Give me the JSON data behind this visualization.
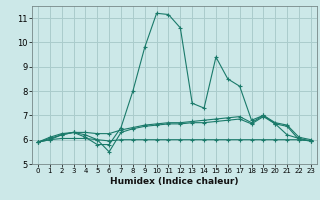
{
  "title": "",
  "xlabel": "Humidex (Indice chaleur)",
  "bg_color": "#cce8e8",
  "grid_color": "#aacccc",
  "line_color": "#1a7a6a",
  "xlim": [
    -0.5,
    23.5
  ],
  "ylim": [
    5.0,
    11.5
  ],
  "xticks": [
    0,
    1,
    2,
    3,
    4,
    5,
    6,
    7,
    8,
    9,
    10,
    11,
    12,
    13,
    14,
    15,
    16,
    17,
    18,
    19,
    20,
    21,
    22,
    23
  ],
  "yticks": [
    5,
    6,
    7,
    8,
    9,
    10,
    11
  ],
  "lines": [
    {
      "x": [
        0,
        1,
        2,
        3,
        4,
        5,
        6,
        7,
        8,
        9,
        10,
        11,
        12,
        13,
        14,
        15,
        16,
        17,
        18,
        19,
        20,
        21,
        22,
        23
      ],
      "y": [
        5.9,
        6.0,
        6.2,
        6.3,
        6.1,
        5.8,
        5.8,
        6.5,
        8.0,
        9.8,
        11.2,
        11.15,
        10.6,
        7.5,
        7.3,
        9.4,
        8.5,
        8.2,
        6.8,
        7.0,
        6.65,
        6.2,
        6.05,
        5.95
      ]
    },
    {
      "x": [
        0,
        1,
        2,
        3,
        4,
        5,
        6,
        7,
        8,
        9,
        10,
        11,
        12,
        13,
        14,
        15,
        16,
        17,
        18,
        19,
        20,
        21,
        22,
        23
      ],
      "y": [
        5.9,
        6.1,
        6.25,
        6.3,
        6.3,
        6.25,
        6.25,
        6.4,
        6.5,
        6.6,
        6.65,
        6.7,
        6.7,
        6.75,
        6.8,
        6.85,
        6.9,
        6.95,
        6.7,
        7.0,
        6.7,
        6.6,
        6.1,
        6.0
      ]
    },
    {
      "x": [
        0,
        1,
        2,
        3,
        4,
        5,
        6,
        7,
        8,
        9,
        10,
        11,
        12,
        13,
        14,
        15,
        16,
        17,
        18,
        19,
        20,
        21,
        22,
        23
      ],
      "y": [
        5.9,
        6.05,
        6.2,
        6.3,
        6.2,
        6.0,
        5.5,
        6.3,
        6.45,
        6.55,
        6.6,
        6.65,
        6.65,
        6.7,
        6.7,
        6.75,
        6.8,
        6.85,
        6.65,
        6.95,
        6.65,
        6.55,
        6.0,
        5.95
      ]
    },
    {
      "x": [
        0,
        1,
        2,
        3,
        4,
        5,
        6,
        7,
        8,
        9,
        10,
        11,
        12,
        13,
        14,
        15,
        16,
        17,
        18,
        19,
        20,
        21,
        22,
        23
      ],
      "y": [
        5.9,
        6.0,
        6.05,
        6.05,
        6.05,
        6.0,
        5.95,
        6.0,
        6.0,
        6.0,
        6.0,
        6.0,
        6.0,
        6.0,
        6.0,
        6.0,
        6.0,
        6.0,
        6.0,
        6.0,
        6.0,
        6.0,
        6.0,
        5.95
      ]
    }
  ]
}
